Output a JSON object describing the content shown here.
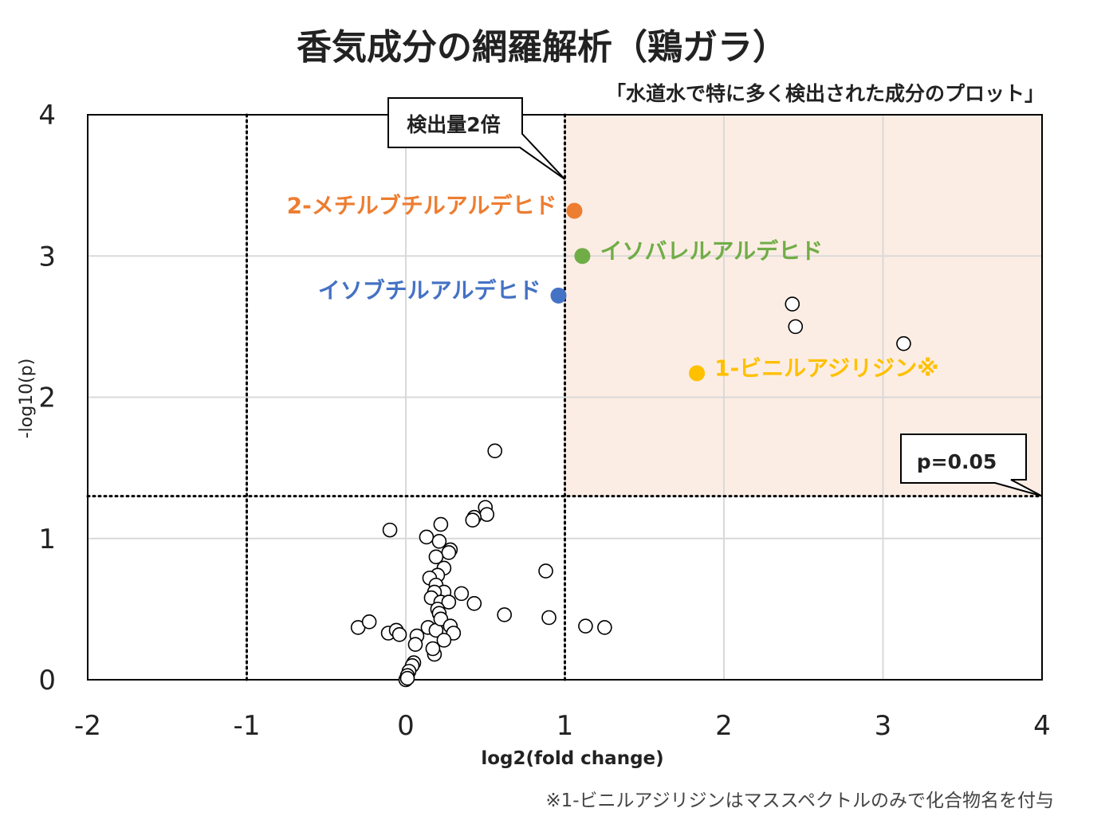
{
  "chart_data": {
    "type": "scatter",
    "title": "香気成分の網羅解析（鶏ガラ）",
    "subtitle": "「水道水で特に多く検出された成分のプロット」",
    "xlabel": "log2(fold change)",
    "ylabel": "-log10(p)",
    "xlim": [
      -2,
      4
    ],
    "ylim": [
      0,
      4
    ],
    "xticks": [
      "-2",
      "-1",
      "0",
      "1",
      "2",
      "3",
      "4"
    ],
    "yticks": [
      "0",
      "1",
      "2",
      "3",
      "4"
    ],
    "grid": true,
    "highlight_region": {
      "x_min": 1,
      "x_max": 4,
      "y_min": 1.3,
      "y_max": 4,
      "color": "#fcede4"
    },
    "threshold_lines": [
      {
        "axis": "x",
        "value": -1
      },
      {
        "axis": "x",
        "value": 1
      },
      {
        "axis": "y",
        "value": 1.3
      }
    ],
    "callouts": {
      "fold": {
        "text": "検出量2倍",
        "target": [
          1,
          3.6
        ]
      },
      "pval": {
        "text": "p=0.05",
        "target": [
          4,
          1.3
        ]
      }
    },
    "highlighted": [
      {
        "name": "2-メチルブチルアルデヒド",
        "x": 1.06,
        "y": 3.32,
        "color": "#ed7d31",
        "label_side": "left"
      },
      {
        "name": "イソバレルアルデヒド",
        "x": 1.11,
        "y": 3.0,
        "color": "#70ad47",
        "label_side": "right"
      },
      {
        "name": "イソブチルアルデヒド",
        "x": 0.96,
        "y": 2.72,
        "color": "#4472c4",
        "label_side": "left"
      },
      {
        "name": "1-ビニルアジリジン※",
        "x": 1.83,
        "y": 2.17,
        "color": "#ffc000",
        "label_side": "right"
      }
    ],
    "points": [
      [
        2.43,
        2.66
      ],
      [
        2.45,
        2.5
      ],
      [
        3.13,
        2.38
      ],
      [
        0.56,
        1.62
      ],
      [
        0.5,
        1.22
      ],
      [
        0.51,
        1.17
      ],
      [
        0.43,
        1.15
      ],
      [
        0.42,
        1.13
      ],
      [
        -0.1,
        1.06
      ],
      [
        0.22,
        1.1
      ],
      [
        0.13,
        1.01
      ],
      [
        0.21,
        0.98
      ],
      [
        0.28,
        0.92
      ],
      [
        0.27,
        0.9
      ],
      [
        0.19,
        0.87
      ],
      [
        0.24,
        0.79
      ],
      [
        0.2,
        0.74
      ],
      [
        0.15,
        0.72
      ],
      [
        0.19,
        0.67
      ],
      [
        0.24,
        0.62
      ],
      [
        0.18,
        0.62
      ],
      [
        0.16,
        0.58
      ],
      [
        0.22,
        0.55
      ],
      [
        0.27,
        0.55
      ],
      [
        0.2,
        0.5
      ],
      [
        0.21,
        0.47
      ],
      [
        0.35,
        0.61
      ],
      [
        0.43,
        0.54
      ],
      [
        0.88,
        0.77
      ],
      [
        0.62,
        0.46
      ],
      [
        0.9,
        0.44
      ],
      [
        1.13,
        0.38
      ],
      [
        1.25,
        0.37
      ],
      [
        -0.3,
        0.37
      ],
      [
        -0.23,
        0.41
      ],
      [
        -0.11,
        0.33
      ],
      [
        -0.06,
        0.35
      ],
      [
        -0.04,
        0.32
      ],
      [
        0.07,
        0.31
      ],
      [
        0.06,
        0.25
      ],
      [
        0.14,
        0.37
      ],
      [
        0.19,
        0.35
      ],
      [
        0.22,
        0.43
      ],
      [
        0.28,
        0.38
      ],
      [
        0.3,
        0.33
      ],
      [
        0.24,
        0.28
      ],
      [
        0.18,
        0.18
      ],
      [
        0.17,
        0.22
      ],
      [
        0.05,
        0.12
      ],
      [
        0.04,
        0.1
      ],
      [
        0.02,
        0.06
      ],
      [
        0.01,
        0.03
      ],
      [
        0.0,
        0.0
      ],
      [
        0.01,
        0.01
      ]
    ]
  },
  "footnote": "※1-ビニルアジリジンはマススペクトルのみで化合物名を付与"
}
